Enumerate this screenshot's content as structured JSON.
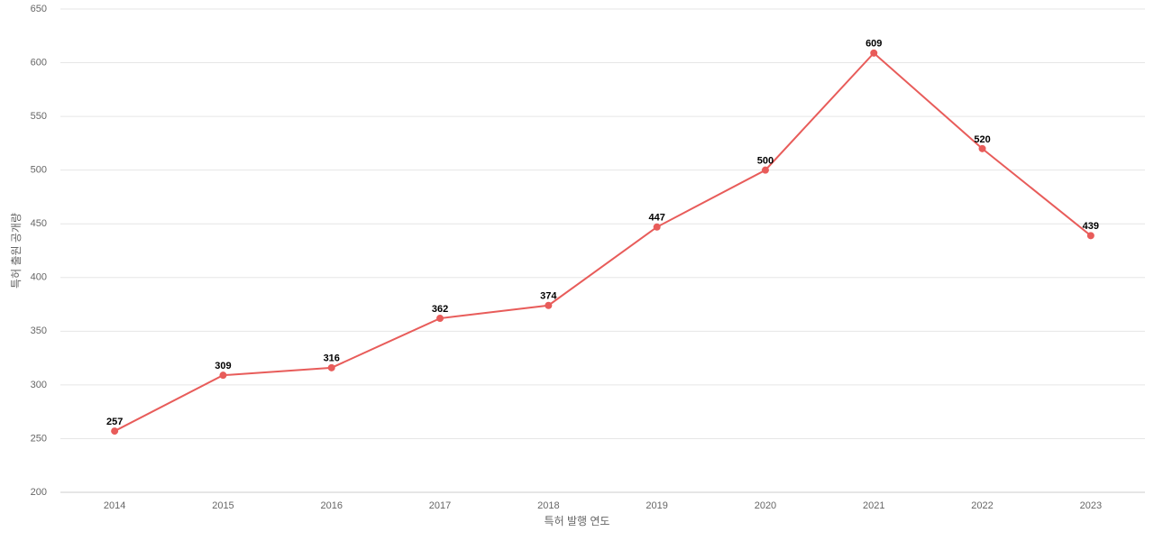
{
  "chart_data": {
    "type": "line",
    "x_label": "특허 발행 연도",
    "y_label": "특허 출원 공개량",
    "categories": [
      "2014",
      "2015",
      "2016",
      "2017",
      "2018",
      "2019",
      "2020",
      "2021",
      "2022",
      "2023"
    ],
    "series": [
      {
        "name": "특허 출원 공개량",
        "color": "#e85c5a",
        "values": [
          257,
          309,
          316,
          362,
          374,
          447,
          500,
          609,
          520,
          439
        ]
      }
    ],
    "ylim": [
      200,
      650
    ],
    "yticks": [
      200,
      250,
      300,
      350,
      400,
      450,
      500,
      550,
      600,
      650
    ],
    "grid": true
  }
}
